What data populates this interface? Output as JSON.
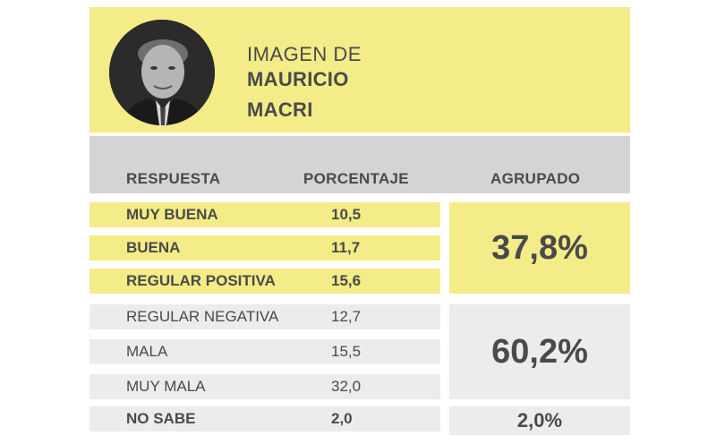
{
  "header": {
    "title_line1": "IMAGEN DE",
    "title_line2": "MAURICIO",
    "title_line3": "MACRI"
  },
  "chart_data": {
    "type": "table",
    "columns": [
      "RESPUESTA",
      "PORCENTAJE",
      "AGRUPADO"
    ],
    "rows": [
      {
        "label": "MUY BUENA",
        "value": "10,5",
        "group": "positive"
      },
      {
        "label": "BUENA",
        "value": "11,7",
        "group": "positive"
      },
      {
        "label": "REGULAR POSITIVA",
        "value": "15,6",
        "group": "positive"
      },
      {
        "label": "REGULAR NEGATIVA",
        "value": "12,7",
        "group": "negative"
      },
      {
        "label": "MALA",
        "value": "15,5",
        "group": "negative"
      },
      {
        "label": "MUY MALA",
        "value": "32,0",
        "group": "negative"
      },
      {
        "label": "NO SABE",
        "value": "2,0",
        "group": "unknown"
      }
    ],
    "groups": {
      "positive": "37,8%",
      "negative": "60,2%",
      "unknown": "2,0%"
    }
  },
  "colors": {
    "highlight_yellow": "#f3ec88",
    "header_gray": "#d4d4d4",
    "row_gray": "#ececec",
    "text": "#4a4a4a"
  }
}
